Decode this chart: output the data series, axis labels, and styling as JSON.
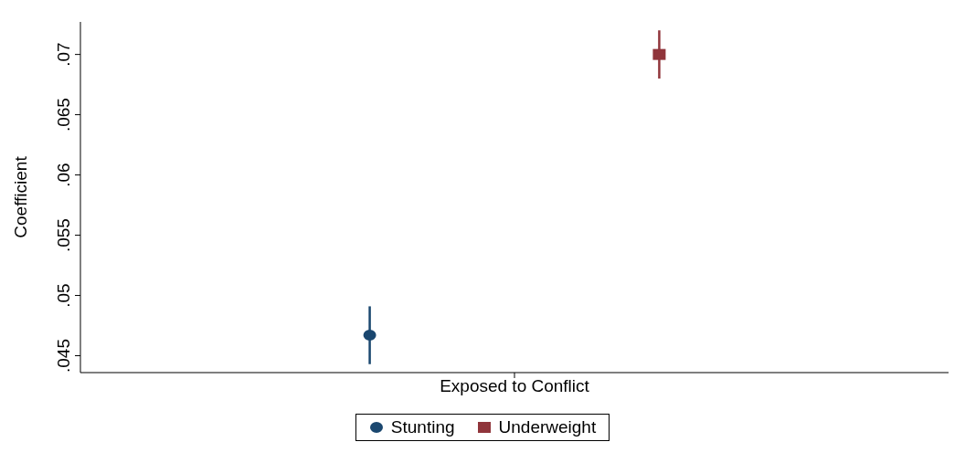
{
  "chart_data": {
    "type": "scatter",
    "ylabel": "Coefficient",
    "categories": [
      "Exposed to Conflict"
    ],
    "series": [
      {
        "name": "Stunting",
        "color": "#1a476f",
        "marker": "circle",
        "values": [
          0.0467
        ],
        "errors": [
          [
            0.0443,
            0.0491
          ]
        ]
      },
      {
        "name": "Underweight",
        "color": "#90353b",
        "marker": "square",
        "values": [
          0.07
        ],
        "errors": [
          [
            0.068,
            0.072
          ]
        ]
      }
    ],
    "ylim": [
      0.0436,
      0.0727
    ],
    "yticks": [
      {
        "value": 0.045,
        "label": ".045"
      },
      {
        "value": 0.05,
        "label": ".05"
      },
      {
        "value": 0.055,
        "label": ".055"
      },
      {
        "value": 0.06,
        "label": ".06"
      },
      {
        "value": 0.065,
        "label": ".065"
      },
      {
        "value": 0.07,
        "label": ".07"
      }
    ],
    "grid": false,
    "legend": "bottom"
  }
}
